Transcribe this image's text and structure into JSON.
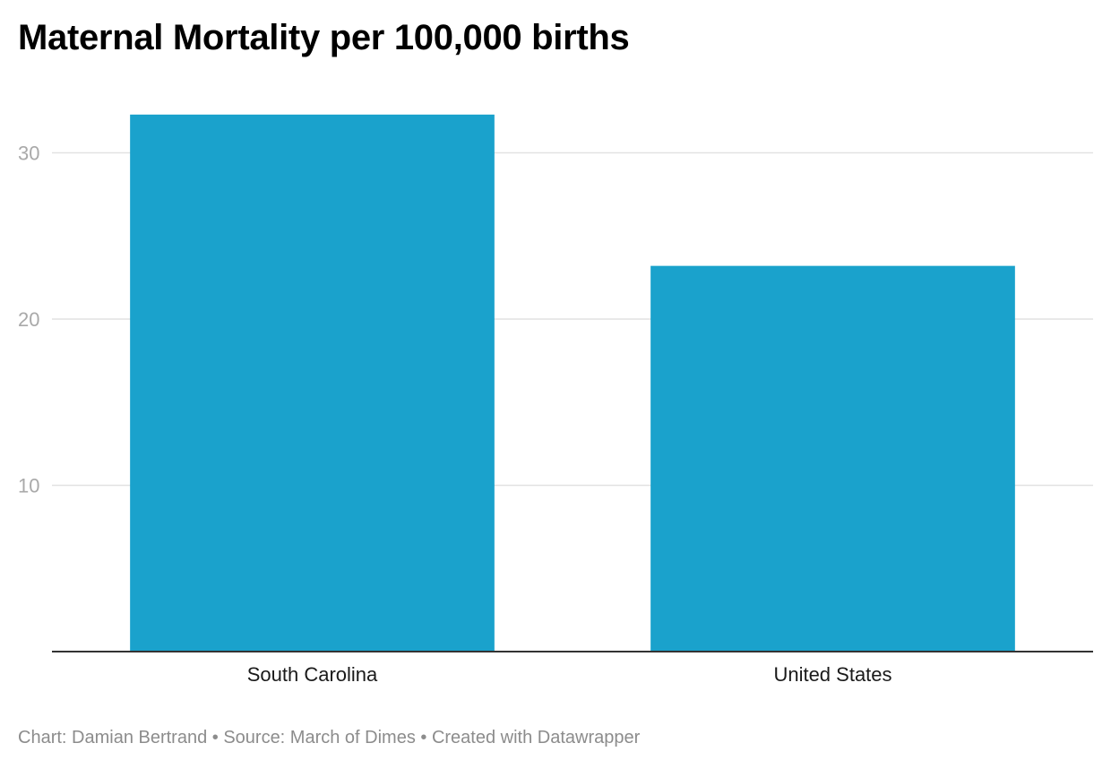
{
  "chart_data": {
    "type": "bar",
    "title": "Maternal Mortality per 100,000 births",
    "categories": [
      "South Carolina",
      "United States"
    ],
    "values": [
      32.3,
      23.2
    ],
    "xlabel": "",
    "ylabel": "",
    "ylim": [
      0,
      35
    ],
    "yticks": [
      10,
      20,
      30
    ],
    "grid": true,
    "legend": "none",
    "bar_color": "#1aa2cc"
  },
  "footer": {
    "credit": "Chart: Damian Bertrand • Source: March of Dimes • Created with Datawrapper"
  }
}
